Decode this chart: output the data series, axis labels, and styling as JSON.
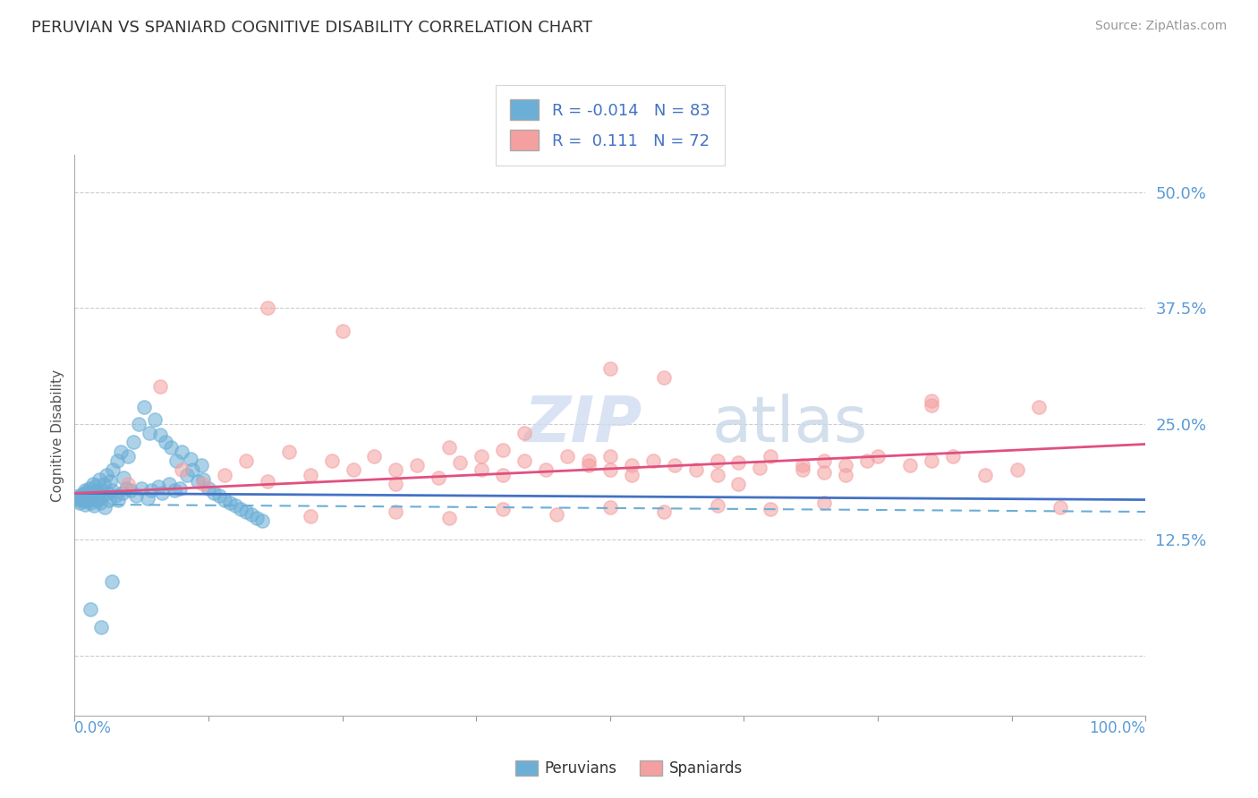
{
  "title": "PERUVIAN VS SPANIARD COGNITIVE DISABILITY CORRELATION CHART",
  "source": "Source: ZipAtlas.com",
  "ylabel": "Cognitive Disability",
  "legend_label1": "Peruvians",
  "legend_label2": "Spaniards",
  "R1": "-0.014",
  "N1": "83",
  "R2": "0.111",
  "N2": "72",
  "color_peruvian": "#6BAED6",
  "color_spaniard": "#F4A0A0",
  "color_peruvian_line_solid": "#4472C4",
  "color_spaniard_line": "#E05080",
  "color_peruvian_line_dash": "#6BAED6",
  "ytick_color": "#5B9BD5",
  "xtick_color": "#5B9BD5",
  "grid_color": "#CCCCCC",
  "xlim": [
    0.0,
    1.0
  ],
  "ylim": [
    -0.065,
    0.54
  ],
  "ytick_positions": [
    0.0,
    0.125,
    0.25,
    0.375,
    0.5
  ],
  "ytick_labels": [
    "",
    "12.5%",
    "25.0%",
    "37.5%",
    "50.0%"
  ],
  "peru_solid_line": [
    0.0,
    0.175,
    1.0,
    0.168
  ],
  "peru_dash_line": [
    0.0,
    0.163,
    1.0,
    0.155
  ],
  "spain_solid_line": [
    0.0,
    0.175,
    1.0,
    0.228
  ],
  "peru_x": [
    0.002,
    0.003,
    0.004,
    0.005,
    0.006,
    0.007,
    0.008,
    0.009,
    0.01,
    0.01,
    0.011,
    0.012,
    0.013,
    0.014,
    0.015,
    0.015,
    0.016,
    0.017,
    0.018,
    0.019,
    0.02,
    0.021,
    0.022,
    0.023,
    0.024,
    0.025,
    0.026,
    0.027,
    0.028,
    0.03,
    0.031,
    0.032,
    0.033,
    0.035,
    0.036,
    0.038,
    0.04,
    0.041,
    0.043,
    0.045,
    0.046,
    0.048,
    0.05,
    0.052,
    0.055,
    0.057,
    0.06,
    0.062,
    0.065,
    0.068,
    0.07,
    0.072,
    0.075,
    0.078,
    0.08,
    0.082,
    0.085,
    0.088,
    0.09,
    0.093,
    0.095,
    0.098,
    0.1,
    0.105,
    0.108,
    0.11,
    0.115,
    0.118,
    0.12,
    0.125,
    0.13,
    0.135,
    0.14,
    0.145,
    0.15,
    0.155,
    0.16,
    0.165,
    0.17,
    0.175,
    0.015,
    0.025,
    0.035
  ],
  "peru_y": [
    0.17,
    0.168,
    0.172,
    0.165,
    0.171,
    0.169,
    0.174,
    0.167,
    0.178,
    0.163,
    0.176,
    0.172,
    0.168,
    0.18,
    0.165,
    0.175,
    0.17,
    0.185,
    0.162,
    0.177,
    0.183,
    0.168,
    0.175,
    0.19,
    0.165,
    0.178,
    0.172,
    0.185,
    0.16,
    0.195,
    0.175,
    0.168,
    0.188,
    0.178,
    0.2,
    0.172,
    0.21,
    0.168,
    0.22,
    0.175,
    0.192,
    0.18,
    0.215,
    0.178,
    0.23,
    0.172,
    0.25,
    0.18,
    0.268,
    0.17,
    0.24,
    0.178,
    0.255,
    0.182,
    0.238,
    0.175,
    0.23,
    0.185,
    0.225,
    0.178,
    0.21,
    0.18,
    0.22,
    0.195,
    0.212,
    0.2,
    0.188,
    0.205,
    0.19,
    0.18,
    0.175,
    0.172,
    0.168,
    0.165,
    0.162,
    0.158,
    0.155,
    0.152,
    0.148,
    0.145,
    0.05,
    0.03,
    0.08
  ],
  "spain_x": [
    0.05,
    0.08,
    0.1,
    0.12,
    0.14,
    0.16,
    0.18,
    0.2,
    0.22,
    0.24,
    0.26,
    0.28,
    0.3,
    0.3,
    0.32,
    0.34,
    0.36,
    0.38,
    0.38,
    0.4,
    0.4,
    0.42,
    0.44,
    0.46,
    0.48,
    0.48,
    0.5,
    0.5,
    0.52,
    0.52,
    0.54,
    0.56,
    0.58,
    0.6,
    0.6,
    0.62,
    0.64,
    0.65,
    0.68,
    0.7,
    0.7,
    0.72,
    0.74,
    0.75,
    0.78,
    0.8,
    0.82,
    0.85,
    0.88,
    0.9,
    0.18,
    0.25,
    0.35,
    0.42,
    0.5,
    0.55,
    0.62,
    0.68,
    0.72,
    0.8,
    0.3,
    0.4,
    0.5,
    0.6,
    0.7,
    0.22,
    0.35,
    0.45,
    0.55,
    0.65,
    0.8,
    0.92
  ],
  "spain_y": [
    0.185,
    0.29,
    0.2,
    0.185,
    0.195,
    0.21,
    0.188,
    0.22,
    0.195,
    0.21,
    0.2,
    0.215,
    0.185,
    0.2,
    0.205,
    0.192,
    0.208,
    0.215,
    0.2,
    0.222,
    0.195,
    0.21,
    0.2,
    0.215,
    0.205,
    0.21,
    0.215,
    0.2,
    0.205,
    0.195,
    0.21,
    0.205,
    0.2,
    0.21,
    0.195,
    0.208,
    0.202,
    0.215,
    0.205,
    0.21,
    0.198,
    0.205,
    0.21,
    0.215,
    0.205,
    0.21,
    0.215,
    0.195,
    0.2,
    0.268,
    0.375,
    0.35,
    0.225,
    0.24,
    0.31,
    0.3,
    0.185,
    0.2,
    0.195,
    0.27,
    0.155,
    0.158,
    0.16,
    0.162,
    0.165,
    0.15,
    0.148,
    0.152,
    0.155,
    0.158,
    0.275,
    0.16
  ]
}
